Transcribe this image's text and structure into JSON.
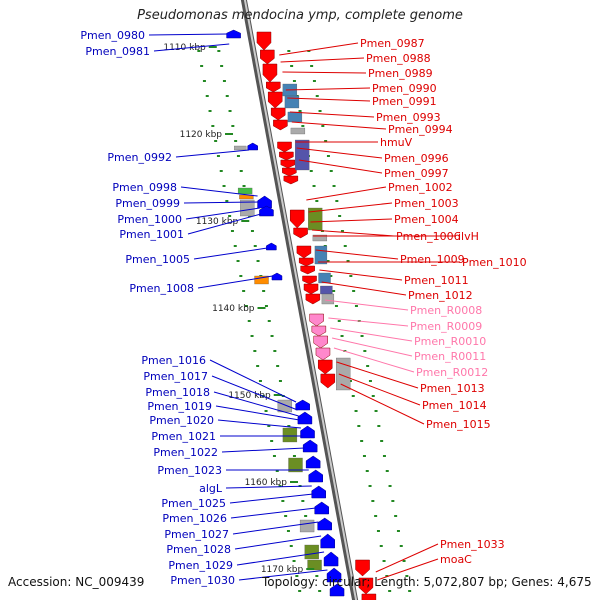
{
  "title": "Pseudomonas mendocina ymp, complete genome",
  "footer": {
    "accession": "Accession: NC_009439",
    "topology": "Topology: circular; Length: 5,072,807 bp; Genes: 4,675"
  },
  "colors": {
    "forward_gene": "#ff0000",
    "reverse_gene": "#0000ff",
    "rna_gene": "#ff88cc",
    "backbone": "#888888",
    "tick": "#228822",
    "cog_olive": "#6b8e23",
    "cog_blue": "#4682b4",
    "cog_purple": "#5555aa",
    "cog_orange": "#ff8c00",
    "cog_gray": "#aaaaaa"
  },
  "scale_ticks": [
    "1110 kbp",
    "1120 kbp",
    "1130 kbp",
    "1140 kbp",
    "1150 kbp",
    "1160 kbp",
    "1170 kbp"
  ],
  "genes_right": [
    {
      "label": "Pmen_0987",
      "type": "forward"
    },
    {
      "label": "Pmen_0988",
      "type": "forward"
    },
    {
      "label": "Pmen_0989",
      "type": "forward"
    },
    {
      "label": "Pmen_0990",
      "type": "forward"
    },
    {
      "label": "Pmen_0991",
      "type": "forward"
    },
    {
      "label": "Pmen_0993",
      "type": "forward"
    },
    {
      "label": "Pmen_0994",
      "type": "forward"
    },
    {
      "label": "hmuV",
      "type": "forward"
    },
    {
      "label": "Pmen_0996",
      "type": "forward"
    },
    {
      "label": "Pmen_0997",
      "type": "forward"
    },
    {
      "label": "Pmen_1002",
      "type": "forward"
    },
    {
      "label": "Pmen_1003",
      "type": "forward"
    },
    {
      "label": "Pmen_1004",
      "type": "forward"
    },
    {
      "label": "Pmen_1006",
      "type": "forward"
    },
    {
      "label": "ilvH",
      "type": "forward"
    },
    {
      "label": "Pmen_1009",
      "type": "forward"
    },
    {
      "label": "Pmen_1010",
      "type": "forward"
    },
    {
      "label": "Pmen_1011",
      "type": "forward"
    },
    {
      "label": "Pmen_1012",
      "type": "forward"
    },
    {
      "label": "Pmen_R0008",
      "type": "rna"
    },
    {
      "label": "Pmen_R0009",
      "type": "rna"
    },
    {
      "label": "Pmen_R0010",
      "type": "rna"
    },
    {
      "label": "Pmen_R0011",
      "type": "rna"
    },
    {
      "label": "Pmen_R0012",
      "type": "rna"
    },
    {
      "label": "Pmen_1013",
      "type": "forward"
    },
    {
      "label": "Pmen_1014",
      "type": "forward"
    },
    {
      "label": "Pmen_1015",
      "type": "forward"
    },
    {
      "label": "Pmen_1033",
      "type": "forward"
    },
    {
      "label": "moaC",
      "type": "forward"
    }
  ],
  "genes_left": [
    {
      "label": "Pmen_0980",
      "type": "reverse"
    },
    {
      "label": "Pmen_0981",
      "type": "reverse"
    },
    {
      "label": "Pmen_0992",
      "type": "reverse"
    },
    {
      "label": "Pmen_0998",
      "type": "reverse"
    },
    {
      "label": "Pmen_0999",
      "type": "reverse"
    },
    {
      "label": "Pmen_1000",
      "type": "reverse"
    },
    {
      "label": "Pmen_1001",
      "type": "reverse"
    },
    {
      "label": "Pmen_1005",
      "type": "reverse"
    },
    {
      "label": "Pmen_1008",
      "type": "reverse"
    },
    {
      "label": "Pmen_1016",
      "type": "reverse"
    },
    {
      "label": "Pmen_1017",
      "type": "reverse"
    },
    {
      "label": "Pmen_1018",
      "type": "reverse"
    },
    {
      "label": "Pmen_1019",
      "type": "reverse"
    },
    {
      "label": "Pmen_1020",
      "type": "reverse"
    },
    {
      "label": "Pmen_1021",
      "type": "reverse"
    },
    {
      "label": "Pmen_1022",
      "type": "reverse"
    },
    {
      "label": "Pmen_1023",
      "type": "reverse"
    },
    {
      "label": "algL",
      "type": "reverse"
    },
    {
      "label": "Pmen_1025",
      "type": "reverse"
    },
    {
      "label": "Pmen_1026",
      "type": "reverse"
    },
    {
      "label": "Pmen_1027",
      "type": "reverse"
    },
    {
      "label": "Pmen_1028",
      "type": "reverse"
    },
    {
      "label": "Pmen_1029",
      "type": "reverse"
    },
    {
      "label": "Pmen_1030",
      "type": "reverse"
    }
  ]
}
